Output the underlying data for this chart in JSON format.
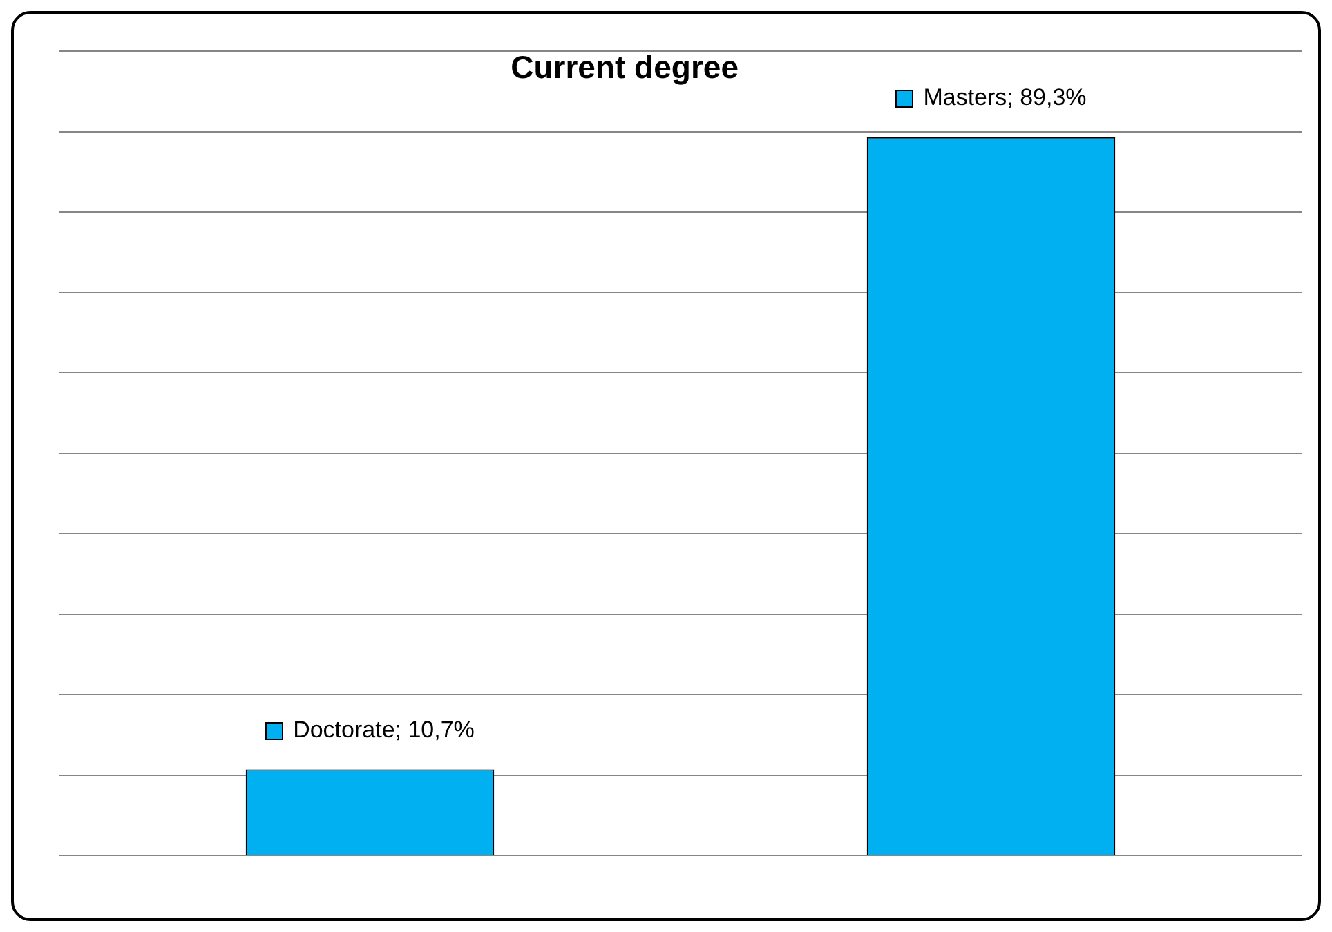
{
  "chart_data": {
    "type": "bar",
    "title": "Current degree",
    "categories": [
      null,
      null
    ],
    "values": [
      10.7,
      89.3
    ],
    "value_labels": [
      "Doctorate; 10,7%",
      "Masters; 89,3%"
    ],
    "color": "#00b0f0",
    "ylim": [
      0,
      100
    ],
    "yticks": [
      {
        "value": 0,
        "label": null
      },
      {
        "value": 10,
        "label": null
      },
      {
        "value": 20,
        "label": null
      },
      {
        "value": 30,
        "label": null
      },
      {
        "value": 40,
        "label": null
      },
      {
        "value": 50,
        "label": null
      },
      {
        "value": 60,
        "label": null
      },
      {
        "value": 70,
        "label": null
      },
      {
        "value": 80,
        "label": null
      },
      {
        "value": 90,
        "label": null
      },
      {
        "value": 100,
        "label": null
      }
    ],
    "grid": "y",
    "legend": false
  }
}
